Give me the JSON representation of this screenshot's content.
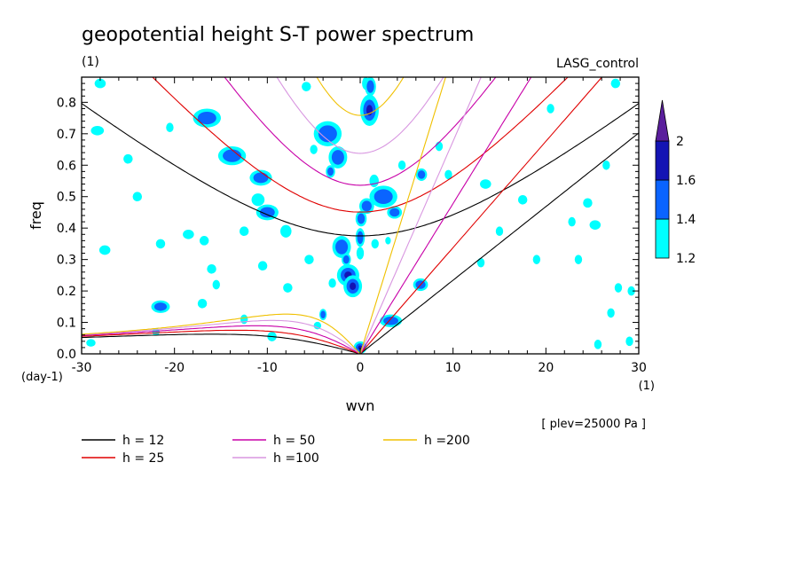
{
  "chart_data": {
    "type": "heatmap",
    "title": "geopotential height S-T power spectrum",
    "subtitle_left": "(1)",
    "subtitle_right": "LASG_control",
    "xlabel": "wvn",
    "ylabel": "freq",
    "x_unit_label": "(1)",
    "y_unit_label": "(day-1)",
    "xlim": [
      -30,
      30
    ],
    "ylim": [
      0,
      0.88
    ],
    "x_ticks": [
      -30,
      -20,
      -10,
      0,
      10,
      20,
      30
    ],
    "x_tick_labels": [
      "-30",
      "-20",
      "-10",
      "0",
      "10",
      "20",
      "30"
    ],
    "y_ticks": [
      0,
      0.1,
      0.2,
      0.3,
      0.4,
      0.5,
      0.6,
      0.7,
      0.8
    ],
    "y_tick_labels": [
      "0.0",
      "0.1",
      "0.2",
      "0.3",
      "0.4",
      "0.5",
      "0.6",
      "0.7",
      "0.8"
    ],
    "annotation": "[ plev=25000 Pa ]",
    "colorbar": {
      "levels": [
        1.2,
        1.4,
        1.6,
        2
      ],
      "labels": [
        "1.2",
        "1.4",
        "1.6",
        "2"
      ],
      "colors": [
        "#00ffff",
        "#0a64ff",
        "#1414b4",
        "#5a1e9c"
      ]
    },
    "dispersion_curves": [
      {
        "label": "h = 12",
        "h": 12,
        "color": "#000000"
      },
      {
        "label": "h = 25",
        "h": 25,
        "color": "#e00000"
      },
      {
        "label": "h = 50",
        "h": 50,
        "color": "#c800a8"
      },
      {
        "label": "h =100",
        "h": 100,
        "color": "#d896e0"
      },
      {
        "label": "h =200",
        "h": 200,
        "color": "#f0c000"
      }
    ],
    "contour_blobs": [
      {
        "x": 1.0,
        "y": 0.775,
        "rx": 1.0,
        "ry": 0.05,
        "level": 3
      },
      {
        "x": 0.6,
        "y": 0.86,
        "rx": 0.4,
        "ry": 0.02,
        "level": 1
      },
      {
        "x": 1.1,
        "y": 0.85,
        "rx": 0.6,
        "ry": 0.03,
        "level": 2
      },
      {
        "x": -1.3,
        "y": 0.25,
        "rx": 1.2,
        "ry": 0.035,
        "level": 3
      },
      {
        "x": -0.8,
        "y": 0.215,
        "rx": 1.0,
        "ry": 0.035,
        "level": 3
      },
      {
        "x": -2.0,
        "y": 0.34,
        "rx": 1.0,
        "ry": 0.035,
        "level": 2
      },
      {
        "x": -1.5,
        "y": 0.3,
        "rx": 0.5,
        "ry": 0.02,
        "level": 2
      },
      {
        "x": 0.0,
        "y": 0.32,
        "rx": 0.4,
        "ry": 0.02,
        "level": 1
      },
      {
        "x": 0.0,
        "y": 0.37,
        "rx": 0.5,
        "ry": 0.03,
        "level": 2
      },
      {
        "x": 0.1,
        "y": 0.43,
        "rx": 0.6,
        "ry": 0.025,
        "level": 2
      },
      {
        "x": 0.7,
        "y": 0.47,
        "rx": 0.8,
        "ry": 0.025,
        "level": 2
      },
      {
        "x": 2.5,
        "y": 0.5,
        "rx": 1.5,
        "ry": 0.035,
        "level": 2
      },
      {
        "x": 3.7,
        "y": 0.45,
        "rx": 0.8,
        "ry": 0.02,
        "level": 2
      },
      {
        "x": 1.5,
        "y": 0.55,
        "rx": 0.5,
        "ry": 0.02,
        "level": 1
      },
      {
        "x": -3.5,
        "y": 0.7,
        "rx": 1.5,
        "ry": 0.04,
        "level": 2
      },
      {
        "x": -2.4,
        "y": 0.625,
        "rx": 1.0,
        "ry": 0.035,
        "level": 2
      },
      {
        "x": -3.2,
        "y": 0.58,
        "rx": 0.5,
        "ry": 0.02,
        "level": 2
      },
      {
        "x": -16.5,
        "y": 0.75,
        "rx": 1.5,
        "ry": 0.03,
        "level": 2
      },
      {
        "x": -13.8,
        "y": 0.63,
        "rx": 1.5,
        "ry": 0.03,
        "level": 2
      },
      {
        "x": -10.7,
        "y": 0.56,
        "rx": 1.2,
        "ry": 0.025,
        "level": 2
      },
      {
        "x": -10.0,
        "y": 0.45,
        "rx": 1.2,
        "ry": 0.025,
        "level": 2
      },
      {
        "x": -11.0,
        "y": 0.49,
        "rx": 0.7,
        "ry": 0.02,
        "level": 1
      },
      {
        "x": -21.5,
        "y": 0.15,
        "rx": 1.0,
        "ry": 0.02,
        "level": 2
      },
      {
        "x": -4.0,
        "y": 0.125,
        "rx": 0.4,
        "ry": 0.018,
        "level": 2
      },
      {
        "x": 3.3,
        "y": 0.105,
        "rx": 1.2,
        "ry": 0.02,
        "level": 2
      },
      {
        "x": 0.0,
        "y": 0.02,
        "rx": 0.7,
        "ry": 0.02,
        "level": 3
      },
      {
        "x": 6.6,
        "y": 0.57,
        "rx": 0.6,
        "ry": 0.02,
        "level": 2
      },
      {
        "x": 6.5,
        "y": 0.22,
        "rx": 0.8,
        "ry": 0.02,
        "level": 2
      },
      {
        "x": -28.0,
        "y": 0.86,
        "rx": 0.6,
        "ry": 0.015,
        "level": 1
      },
      {
        "x": -28.3,
        "y": 0.71,
        "rx": 0.7,
        "ry": 0.015,
        "level": 1
      },
      {
        "x": -25.0,
        "y": 0.62,
        "rx": 0.5,
        "ry": 0.015,
        "level": 1
      },
      {
        "x": -24.0,
        "y": 0.5,
        "rx": 0.5,
        "ry": 0.015,
        "level": 1
      },
      {
        "x": -27.5,
        "y": 0.33,
        "rx": 0.6,
        "ry": 0.015,
        "level": 1
      },
      {
        "x": -21.5,
        "y": 0.35,
        "rx": 0.5,
        "ry": 0.015,
        "level": 1
      },
      {
        "x": -18.5,
        "y": 0.38,
        "rx": 0.6,
        "ry": 0.015,
        "level": 1
      },
      {
        "x": -16.8,
        "y": 0.36,
        "rx": 0.5,
        "ry": 0.015,
        "level": 1
      },
      {
        "x": -12.5,
        "y": 0.39,
        "rx": 0.5,
        "ry": 0.015,
        "level": 1
      },
      {
        "x": -8.0,
        "y": 0.39,
        "rx": 0.6,
        "ry": 0.02,
        "level": 1
      },
      {
        "x": -16.0,
        "y": 0.27,
        "rx": 0.5,
        "ry": 0.015,
        "level": 1
      },
      {
        "x": -10.5,
        "y": 0.28,
        "rx": 0.5,
        "ry": 0.015,
        "level": 1
      },
      {
        "x": -5.5,
        "y": 0.3,
        "rx": 0.5,
        "ry": 0.015,
        "level": 1
      },
      {
        "x": -7.8,
        "y": 0.21,
        "rx": 0.5,
        "ry": 0.015,
        "level": 1
      },
      {
        "x": -3.0,
        "y": 0.225,
        "rx": 0.4,
        "ry": 0.015,
        "level": 1
      },
      {
        "x": -17.0,
        "y": 0.16,
        "rx": 0.5,
        "ry": 0.015,
        "level": 1
      },
      {
        "x": -12.5,
        "y": 0.11,
        "rx": 0.4,
        "ry": 0.015,
        "level": 1
      },
      {
        "x": -9.5,
        "y": 0.055,
        "rx": 0.5,
        "ry": 0.015,
        "level": 1
      },
      {
        "x": -20.5,
        "y": 0.72,
        "rx": 0.4,
        "ry": 0.015,
        "level": 1
      },
      {
        "x": -15.5,
        "y": 0.22,
        "rx": 0.4,
        "ry": 0.015,
        "level": 1
      },
      {
        "x": -5.8,
        "y": 0.85,
        "rx": 0.5,
        "ry": 0.015,
        "level": 1
      },
      {
        "x": -5.0,
        "y": 0.65,
        "rx": 0.4,
        "ry": 0.015,
        "level": 1
      },
      {
        "x": 4.5,
        "y": 0.6,
        "rx": 0.4,
        "ry": 0.015,
        "level": 1
      },
      {
        "x": 9.5,
        "y": 0.57,
        "rx": 0.4,
        "ry": 0.015,
        "level": 1
      },
      {
        "x": 8.5,
        "y": 0.66,
        "rx": 0.4,
        "ry": 0.015,
        "level": 1
      },
      {
        "x": 13.5,
        "y": 0.54,
        "rx": 0.6,
        "ry": 0.015,
        "level": 1
      },
      {
        "x": 17.5,
        "y": 0.49,
        "rx": 0.5,
        "ry": 0.015,
        "level": 1
      },
      {
        "x": 20.5,
        "y": 0.78,
        "rx": 0.4,
        "ry": 0.015,
        "level": 1
      },
      {
        "x": 22.8,
        "y": 0.42,
        "rx": 0.4,
        "ry": 0.015,
        "level": 1
      },
      {
        "x": 25.3,
        "y": 0.41,
        "rx": 0.6,
        "ry": 0.015,
        "level": 1
      },
      {
        "x": 24.5,
        "y": 0.48,
        "rx": 0.5,
        "ry": 0.015,
        "level": 1
      },
      {
        "x": 27.5,
        "y": 0.86,
        "rx": 0.5,
        "ry": 0.015,
        "level": 1
      },
      {
        "x": 26.5,
        "y": 0.6,
        "rx": 0.4,
        "ry": 0.015,
        "level": 1
      },
      {
        "x": 27.8,
        "y": 0.21,
        "rx": 0.4,
        "ry": 0.015,
        "level": 1
      },
      {
        "x": 29.2,
        "y": 0.2,
        "rx": 0.4,
        "ry": 0.015,
        "level": 1
      },
      {
        "x": 27.0,
        "y": 0.13,
        "rx": 0.4,
        "ry": 0.015,
        "level": 1
      },
      {
        "x": 29.0,
        "y": 0.04,
        "rx": 0.4,
        "ry": 0.015,
        "level": 1
      },
      {
        "x": 25.6,
        "y": 0.03,
        "rx": 0.4,
        "ry": 0.015,
        "level": 1
      },
      {
        "x": 15.0,
        "y": 0.39,
        "rx": 0.4,
        "ry": 0.015,
        "level": 1
      },
      {
        "x": 13.0,
        "y": 0.29,
        "rx": 0.4,
        "ry": 0.015,
        "level": 1
      },
      {
        "x": 19.0,
        "y": 0.3,
        "rx": 0.4,
        "ry": 0.015,
        "level": 1
      },
      {
        "x": 23.5,
        "y": 0.3,
        "rx": 0.4,
        "ry": 0.015,
        "level": 1
      },
      {
        "x": -29.0,
        "y": 0.035,
        "rx": 0.5,
        "ry": 0.012,
        "level": 1
      },
      {
        "x": -22.0,
        "y": 0.07,
        "rx": 0.4,
        "ry": 0.012,
        "level": 1
      },
      {
        "x": -4.6,
        "y": 0.09,
        "rx": 0.4,
        "ry": 0.012,
        "level": 1
      },
      {
        "x": 1.6,
        "y": 0.35,
        "rx": 0.4,
        "ry": 0.015,
        "level": 1
      },
      {
        "x": 3.0,
        "y": 0.36,
        "rx": 0.3,
        "ry": 0.012,
        "level": 1
      }
    ]
  },
  "legend_rows": [
    [
      {
        "label": "h = 12",
        "color": "#000000"
      },
      {
        "label": "h = 50",
        "color": "#c800a8"
      },
      {
        "label": "h =200",
        "color": "#f0c000"
      }
    ],
    [
      {
        "label": "h = 25",
        "color": "#e00000"
      },
      {
        "label": "h =100",
        "color": "#d896e0"
      }
    ]
  ]
}
